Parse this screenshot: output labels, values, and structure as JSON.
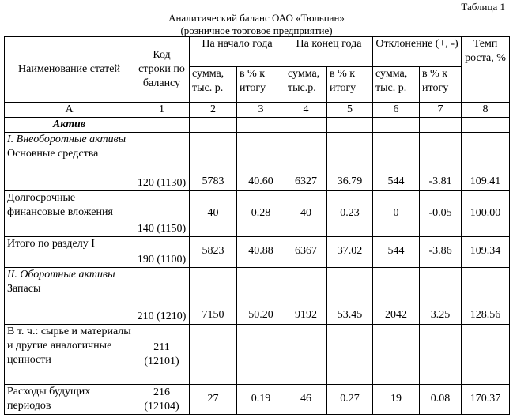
{
  "table_label": "Таблица 1",
  "title": "Аналитический баланс ОАО «Тюльпан»",
  "subtitle": "(розничное торговое предприятие)",
  "header": {
    "name": "Наименование статей",
    "code": "Код строки по балансу",
    "start_year": "На начало года",
    "end_year": "На конец года",
    "deviation": "Отклонение (+, -)",
    "growth": "Темп роста, %",
    "sum_a": "сумма, тыс. р.",
    "pct_a": "в % к итогу",
    "sum_b": "сумма, тыс.р.",
    "pct_b": "в % к итогу",
    "sum_c": "сумма, тыс. р.",
    "pct_c": "в % к итогу"
  },
  "index_row": [
    "А",
    "1",
    "2",
    "3",
    "4",
    "5",
    "6",
    "7",
    "8"
  ],
  "section_asset": "Актив",
  "rows": [
    {
      "heading": "I. Внеоборотные активы",
      "name": "Основные средства",
      "code": "120 (1130)",
      "values": [
        "5783",
        "40.60",
        "6327",
        "36.79",
        "544",
        "-3.81",
        "109.41"
      ]
    },
    {
      "name": "Долгосрочные финансовые вложения",
      "code": "140 (1150)",
      "values": [
        "40",
        "0.28",
        "40",
        "0.23",
        "0",
        "-0.05",
        "100.00"
      ]
    },
    {
      "name": "Итого по разделу I",
      "code": "190 (1100)",
      "values": [
        "5823",
        "40.88",
        "6367",
        "37.02",
        "544",
        "-3.86",
        "109.34"
      ]
    },
    {
      "heading": "II. Оборотные активы",
      "name": "Запасы",
      "code": "210 (1210)",
      "values": [
        "7150",
        "50.20",
        "9192",
        "53.45",
        "2042",
        "3.25",
        "128.56"
      ]
    },
    {
      "name": "В т. ч.: сырье и материалы и другие аналогичные ценности",
      "code": "211 (12101)",
      "values": [
        "",
        "",
        "",
        "",
        "",
        "",
        ""
      ]
    },
    {
      "name": "Расходы будущих периодов",
      "code": "216 (12104)",
      "values": [
        "27",
        "0.19",
        "46",
        "0.27",
        "19",
        "0.08",
        "170.37"
      ]
    }
  ]
}
